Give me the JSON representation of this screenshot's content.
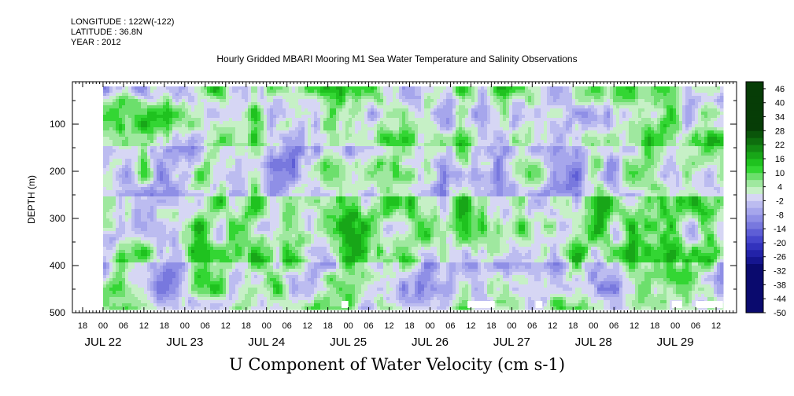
{
  "header": {
    "longitude": "LONGITUDE : 122W(-122)",
    "latitude": "LATITUDE : 36.8N",
    "year": "YEAR : 2012"
  },
  "colors": {
    "positive_scale": [
      "#c6f0c6",
      "#9fe89f",
      "#6cdf6c",
      "#33d633",
      "#1fc21f",
      "#18a618",
      "#138a13",
      "#0e6e0e",
      "#0a550a",
      "#063d06"
    ],
    "negative_scale": [
      "#d6d6f4",
      "#bcbcf0",
      "#a6a6ec",
      "#8f8fe6",
      "#7878de",
      "#5e5ed6",
      "#4646cc",
      "#3232bd",
      "#2222a8",
      "#15158f",
      "#0a0a6e"
    ],
    "gap": "#ffffff"
  },
  "chart_data": {
    "type": "heatmap",
    "title": "Hourly Gridded MBARI Mooring M1 Sea Water Temperature and Salinity Observations",
    "xlabel": "U Component of Water Velocity (cm s-1)",
    "ylabel": "DEPTH (m)",
    "xlim": [
      "2012-07-21T15:00",
      "2012-07-29T18:00"
    ],
    "data_range_time": [
      "2012-07-22T00:00",
      "2012-07-29T14:00"
    ],
    "ylim": [
      10,
      500
    ],
    "data_range_depth": [
      20,
      490
    ],
    "y_reversed": true,
    "y_ticks": [
      100,
      200,
      300,
      400,
      500
    ],
    "x_hour_ticks": [
      "18",
      "00",
      "06",
      "12",
      "18",
      "00",
      "06",
      "12",
      "18",
      "00",
      "06",
      "12",
      "18",
      "00",
      "06",
      "12",
      "18",
      "00",
      "06",
      "12",
      "18",
      "00",
      "06",
      "12",
      "18",
      "00",
      "06",
      "12",
      "18",
      "00",
      "06",
      "12"
    ],
    "x_day_labels": [
      {
        "label": "JUL 22",
        "date": "2012-07-22T00:00"
      },
      {
        "label": "JUL 23",
        "date": "2012-07-23T00:00"
      },
      {
        "label": "JUL 24",
        "date": "2012-07-24T00:00"
      },
      {
        "label": "JUL 25",
        "date": "2012-07-25T00:00"
      },
      {
        "label": "JUL 26",
        "date": "2012-07-26T00:00"
      },
      {
        "label": "JUL 27",
        "date": "2012-07-27T00:00"
      },
      {
        "label": "JUL 28",
        "date": "2012-07-28T00:00"
      },
      {
        "label": "JUL 29",
        "date": "2012-07-29T00:00"
      }
    ],
    "colorbar_labels": [
      "46",
      "40",
      "34",
      "28",
      "22",
      "16",
      "10",
      "4",
      "-2",
      "-8",
      "-14",
      "-20",
      "-26",
      "-32",
      "-38",
      "-44",
      "-50"
    ],
    "colorbar_levels": [
      -50,
      -47,
      -44,
      -41,
      -38,
      -35,
      -32,
      -29,
      -26,
      -23,
      -20,
      -17,
      -14,
      -11,
      -8,
      -5,
      -2,
      1,
      4,
      7,
      10,
      13,
      16,
      19,
      22,
      25,
      28,
      31,
      34,
      37,
      40,
      43,
      46,
      49
    ],
    "depth_bands": [
      {
        "depth_range": [
          20,
          140
        ],
        "dominant": "positive",
        "approx_value": 3
      },
      {
        "depth_range": [
          140,
          250
        ],
        "dominant": "mixed",
        "approx_value": -2
      },
      {
        "depth_range": [
          250,
          390
        ],
        "dominant": "positive",
        "approx_value": 6
      },
      {
        "depth_range": [
          390,
          490
        ],
        "dominant": "mixed",
        "approx_value": 0
      }
    ],
    "value_range_shown": [
      -20,
      16
    ],
    "missing_data_gaps": [
      {
        "time": [
          "2012-07-24T22:00",
          "2012-07-25T00:00"
        ],
        "depth": [
          475,
          490
        ]
      },
      {
        "time": [
          "2012-07-26T11:00",
          "2012-07-26T19:00"
        ],
        "depth": [
          475,
          490
        ]
      },
      {
        "time": [
          "2012-07-27T07:00",
          "2012-07-27T09:00"
        ],
        "depth": [
          475,
          490
        ]
      },
      {
        "time": [
          "2012-07-28T23:00",
          "2012-07-29T02:00"
        ],
        "depth": [
          475,
          490
        ]
      },
      {
        "time": [
          "2012-07-29T06:00",
          "2012-07-29T14:00"
        ],
        "depth": [
          475,
          490
        ]
      }
    ]
  }
}
